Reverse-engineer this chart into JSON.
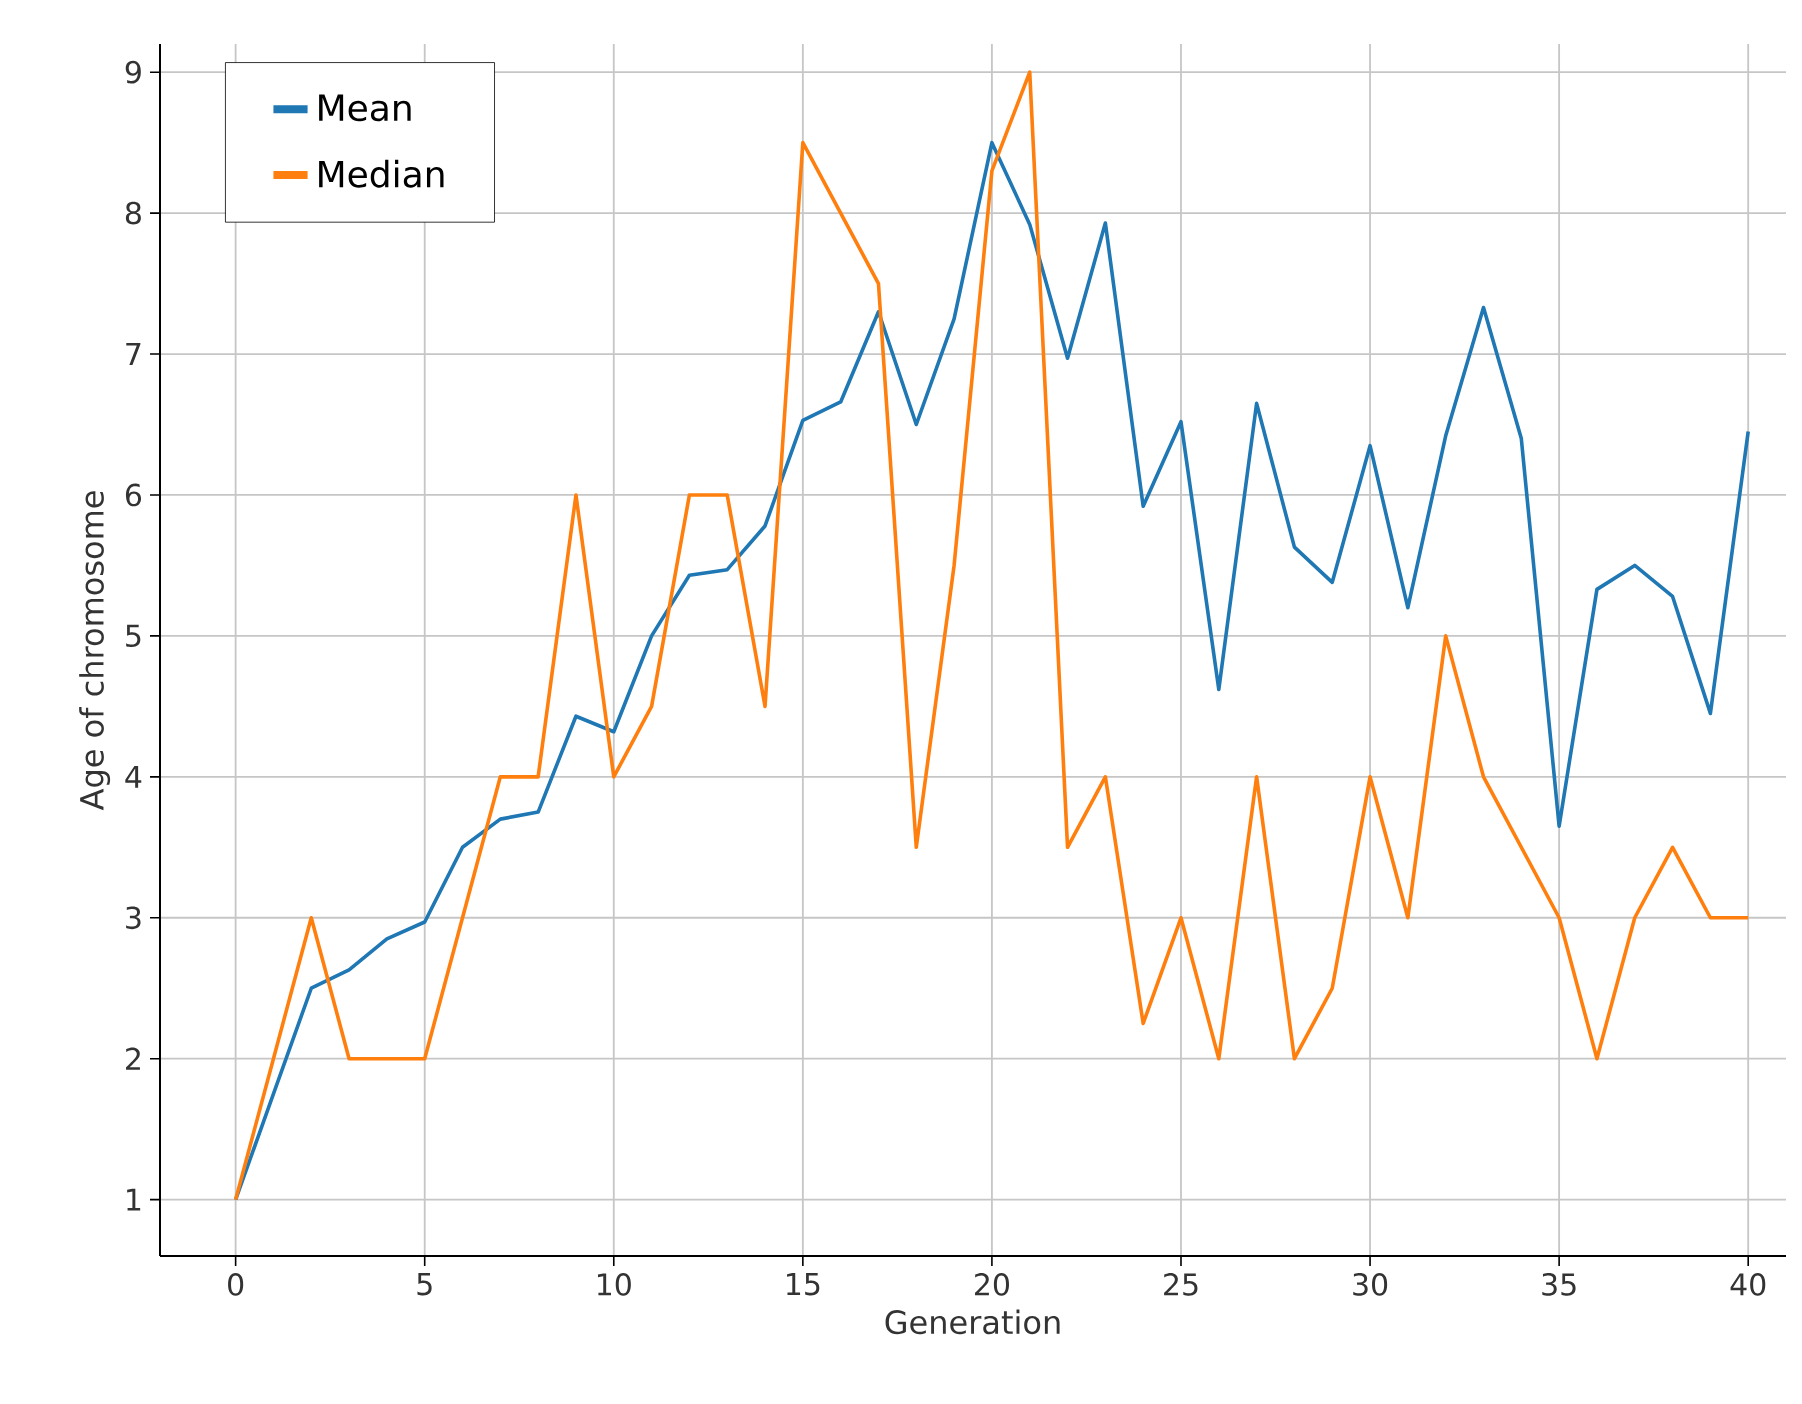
{
  "chart_data": {
    "type": "line",
    "xlabel": "Generation",
    "ylabel": "Age of chromosome",
    "x": [
      0,
      1,
      2,
      3,
      4,
      5,
      6,
      7,
      8,
      9,
      10,
      11,
      12,
      13,
      14,
      15,
      16,
      17,
      18,
      19,
      20,
      21,
      22,
      23,
      24,
      25,
      26,
      27,
      28,
      29,
      30,
      31,
      32,
      33,
      34,
      35,
      36,
      37,
      38,
      39,
      40
    ],
    "series": [
      {
        "name": "Mean",
        "color": "#1f77b4",
        "values": [
          1,
          1.75,
          2.5,
          2.63,
          2.85,
          2.97,
          3.5,
          3.7,
          3.75,
          4.43,
          4.32,
          5.0,
          5.43,
          5.47,
          5.78,
          6.53,
          6.66,
          7.3,
          6.5,
          7.25,
          8.5,
          7.92,
          6.97,
          7.93,
          5.92,
          6.52,
          4.62,
          6.65,
          5.63,
          5.38,
          6.35,
          5.2,
          6.42,
          7.33,
          6.4,
          3.65,
          5.33,
          5.5,
          5.28,
          4.45,
          6.45
        ]
      },
      {
        "name": "Median",
        "color": "#ff7f0e",
        "values": [
          1,
          2,
          3,
          2,
          2,
          2,
          3,
          4,
          4,
          6,
          4,
          4.5,
          6,
          6,
          4.5,
          8.5,
          8,
          7.5,
          3.5,
          5.5,
          8.3,
          9,
          3.5,
          4,
          2.25,
          3,
          2,
          4,
          2,
          2.5,
          4,
          3,
          5,
          4,
          3.5,
          3,
          2,
          3,
          3.5,
          3,
          3
        ]
      }
    ],
    "xlim": [
      -2,
      41
    ],
    "ylim": [
      0.6,
      9.2
    ],
    "xticks": [
      0,
      5,
      10,
      15,
      20,
      25,
      30,
      35,
      40
    ],
    "yticks": [
      1,
      2,
      3,
      4,
      5,
      6,
      7,
      8,
      9
    ],
    "grid": true,
    "legend": "top left",
    "marker": "none",
    "line_style": "solid"
  }
}
